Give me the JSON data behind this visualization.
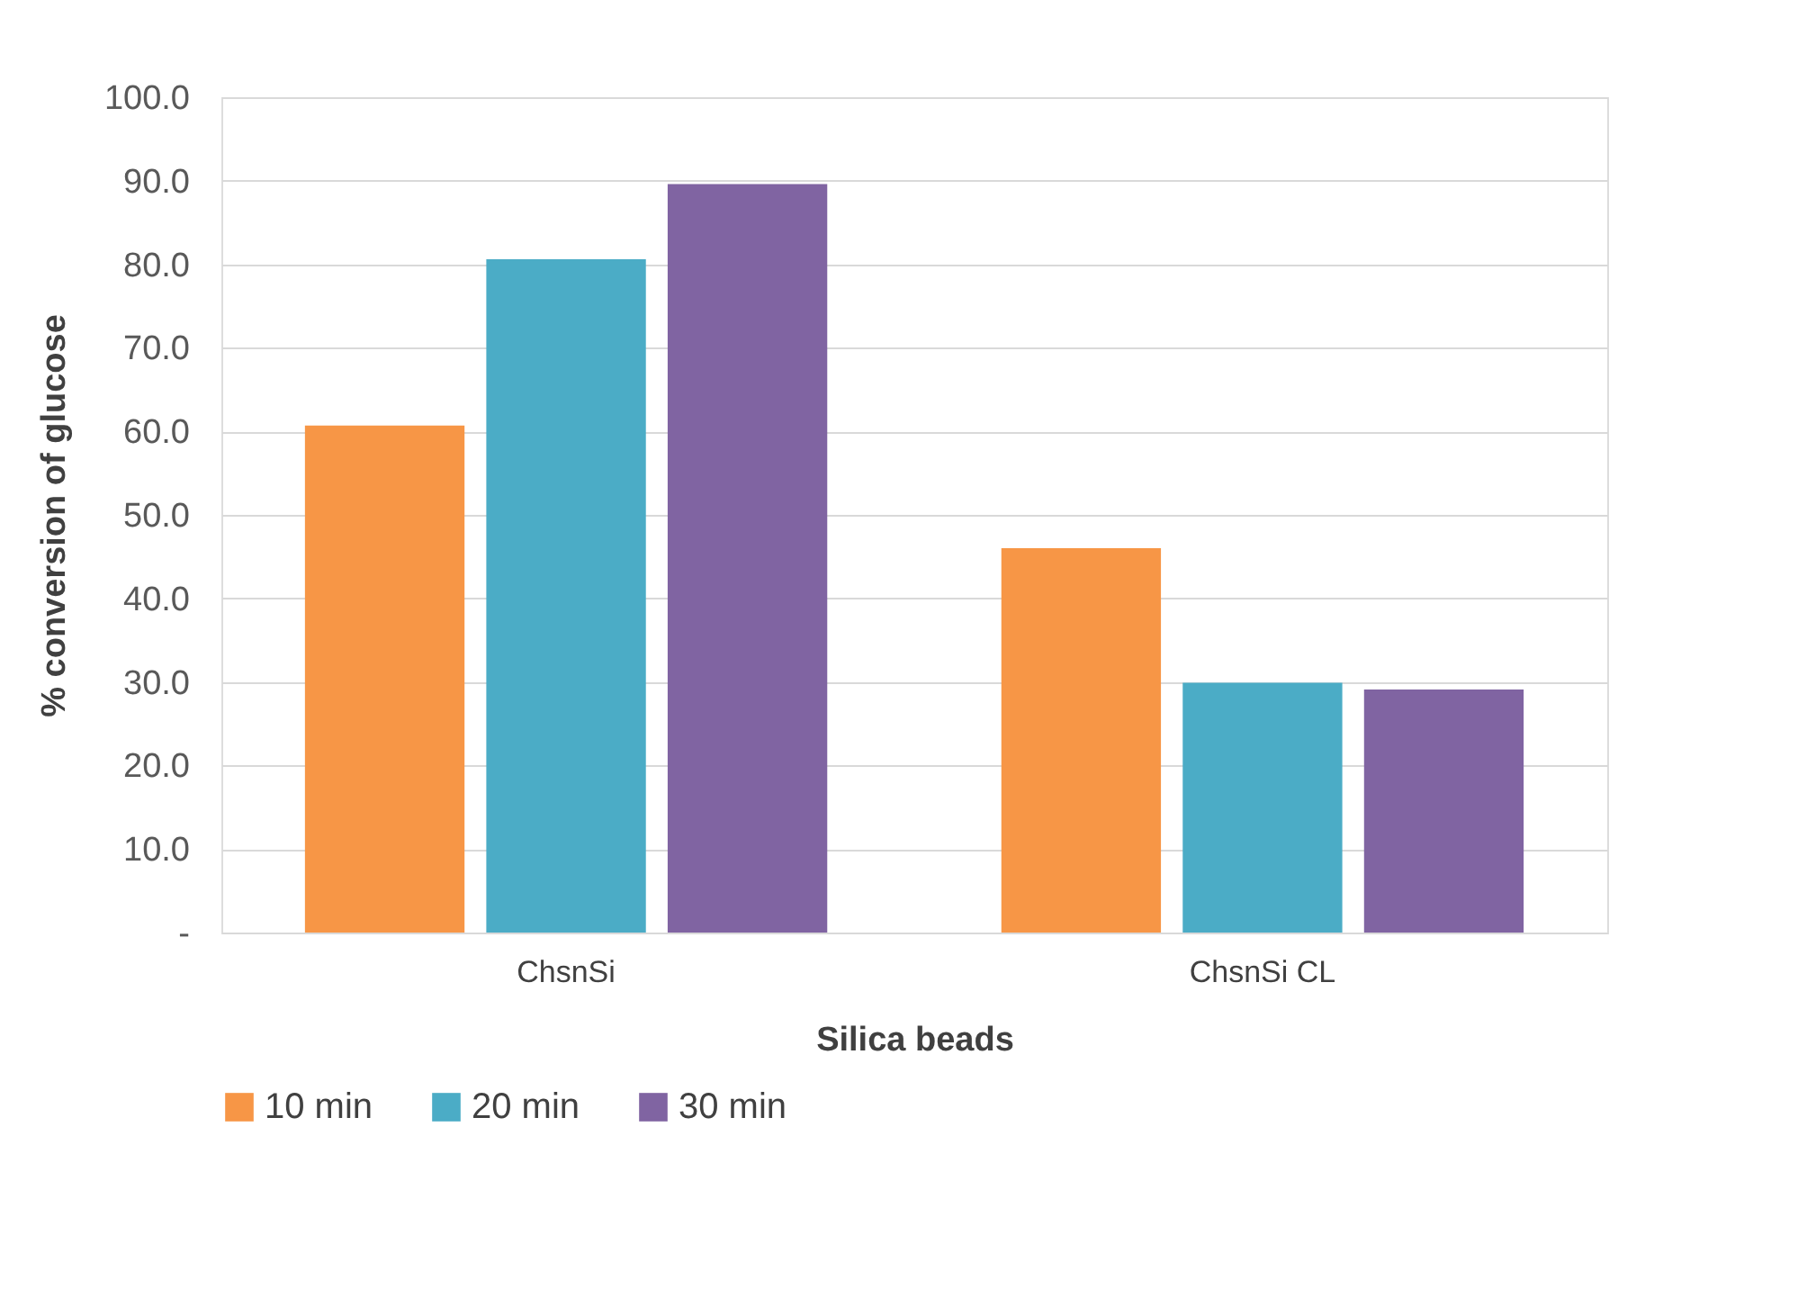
{
  "chart_data": {
    "type": "bar",
    "xlabel": "Silica  beads",
    "ylabel": "% conversion of glucose",
    "categories": [
      "ChsnSi",
      "ChsnSi CL"
    ],
    "series": [
      {
        "name": "10 min",
        "color": "#f79646",
        "values": [
          60.7,
          46.0
        ]
      },
      {
        "name": "20 min",
        "color": "#4bacc6",
        "values": [
          80.6,
          29.9
        ]
      },
      {
        "name": "30 min",
        "color": "#8064a2",
        "values": [
          89.6,
          29.1
        ]
      }
    ],
    "ylim": [
      0,
      100
    ],
    "yticks": [
      {
        "value": 0,
        "label": "-"
      },
      {
        "value": 10,
        "label": "10.0"
      },
      {
        "value": 20,
        "label": "20.0"
      },
      {
        "value": 30,
        "label": "30.0"
      },
      {
        "value": 40,
        "label": "40.0"
      },
      {
        "value": 50,
        "label": "50.0"
      },
      {
        "value": 60,
        "label": "60.0"
      },
      {
        "value": 70,
        "label": "70.0"
      },
      {
        "value": 80,
        "label": "80.0"
      },
      {
        "value": 90,
        "label": "90.0"
      },
      {
        "value": 100,
        "label": "100.0"
      }
    ],
    "grid": "y",
    "legend": "bottom"
  }
}
